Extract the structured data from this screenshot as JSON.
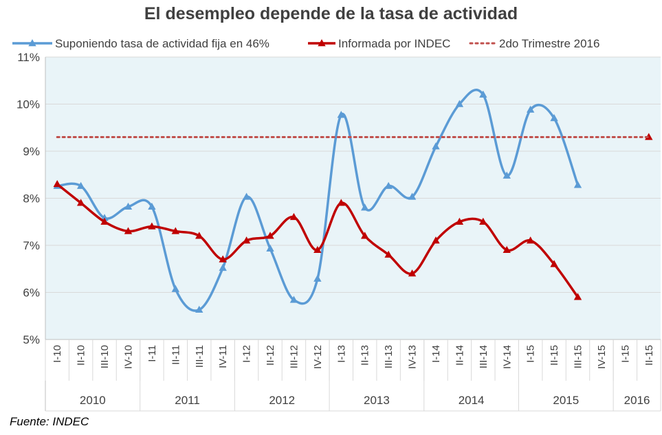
{
  "chart_data": {
    "type": "line",
    "title": "El desempleo depende de la tasa de actividad",
    "source": "Fuente: INDEC",
    "ylim": [
      0.05,
      0.11
    ],
    "y_ticks": [
      "5%",
      "6%",
      "7%",
      "8%",
      "9%",
      "10%",
      "11%"
    ],
    "categories": [
      "I-10",
      "II-10",
      "III-10",
      "IV-10",
      "I-11",
      "II-11",
      "III-11",
      "IV-11",
      "I-12",
      "II-12",
      "III-12",
      "IV-12",
      "I-13",
      "II-13",
      "III-13",
      "IV-13",
      "I-14",
      "II-14",
      "III-14",
      "IV-14",
      "I-15",
      "II-15",
      "III-15",
      "IV-15",
      "I-15",
      "II-15"
    ],
    "year_groups": [
      {
        "label": "2010",
        "start": 0,
        "end": 3
      },
      {
        "label": "2011",
        "start": 4,
        "end": 7
      },
      {
        "label": "2012",
        "start": 8,
        "end": 11
      },
      {
        "label": "2013",
        "start": 12,
        "end": 15
      },
      {
        "label": "2014",
        "start": 16,
        "end": 19
      },
      {
        "label": "2015",
        "start": 20,
        "end": 23
      },
      {
        "label": "2016",
        "start": 24,
        "end": 25
      }
    ],
    "grid": true,
    "plot_background": "#e9f4f8",
    "legend_position": "top",
    "series": [
      {
        "name": "Suponiendo tasa de actividad fija en 46%",
        "color": "#5b9bd5",
        "marker": "triangle",
        "style": "smooth",
        "values": [
          0.0826,
          0.0826,
          0.0758,
          0.0782,
          0.0782,
          0.0607,
          0.0563,
          0.0652,
          0.0803,
          0.0693,
          0.0584,
          0.0629,
          0.0977,
          0.078,
          0.0826,
          0.0803,
          0.091,
          0.1,
          0.102,
          0.0848,
          0.0988,
          0.097,
          0.0828,
          null,
          null,
          null
        ]
      },
      {
        "name": "Informada por INDEC",
        "color": "#c00000",
        "marker": "triangle",
        "style": "smooth",
        "values": [
          0.083,
          0.079,
          0.075,
          0.073,
          0.074,
          0.073,
          0.072,
          0.067,
          0.071,
          0.072,
          0.076,
          0.069,
          0.079,
          0.072,
          0.068,
          0.064,
          0.071,
          0.075,
          0.075,
          0.069,
          0.071,
          0.066,
          0.059,
          null,
          null,
          0.093
        ]
      },
      {
        "name": "2do Trimestre 2016",
        "color": "#c0504d",
        "style": "dotted",
        "constant": 0.093
      }
    ]
  }
}
